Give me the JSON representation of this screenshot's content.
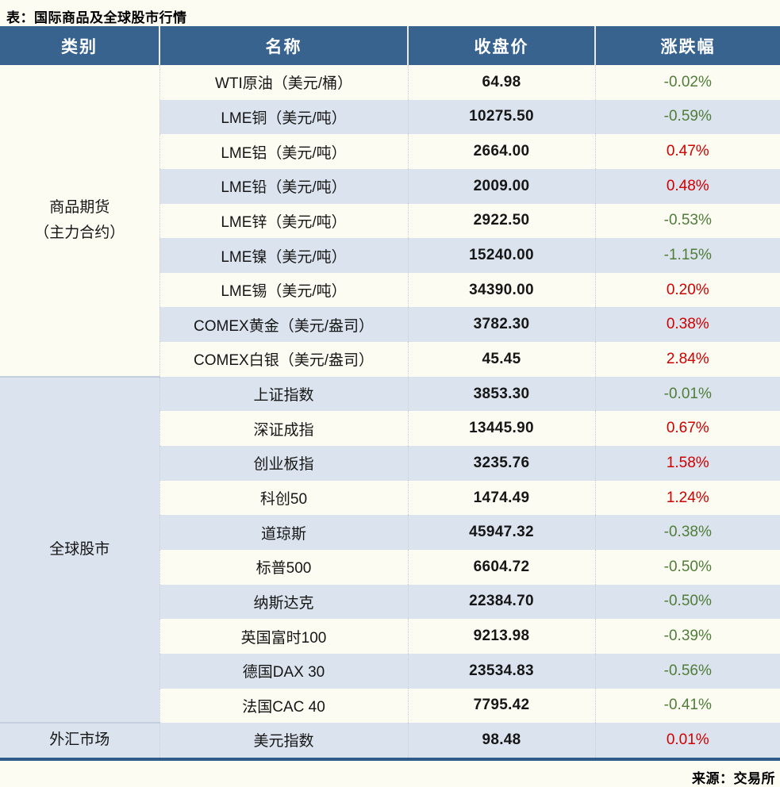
{
  "colors": {
    "page_bg": "#fdfcf3",
    "header_bg": "#38638f",
    "header_text": "#ffffff",
    "stripe_bg": "#dbe3ee",
    "bottom_border": "#2e5b8a",
    "positive_change": "#d00000",
    "negative_change": "#4f7d38"
  },
  "chart_data": {
    "type": "table",
    "title": "表：国际商品及全球股市行情",
    "source": "来源：交易所",
    "columns": [
      "类别",
      "名称",
      "收盘价",
      "涨跌幅"
    ],
    "groups": [
      {
        "category": "商品期货\n（主力合约）",
        "rows": [
          {
            "name": "WTI原油（美元/桶）",
            "close": "64.98",
            "change": "-0.02%"
          },
          {
            "name": "LME铜（美元/吨）",
            "close": "10275.50",
            "change": "-0.59%"
          },
          {
            "name": "LME铝（美元/吨）",
            "close": "2664.00",
            "change": "0.47%"
          },
          {
            "name": "LME铅（美元/吨）",
            "close": "2009.00",
            "change": "0.48%"
          },
          {
            "name": "LME锌（美元/吨）",
            "close": "2922.50",
            "change": "-0.53%"
          },
          {
            "name": "LME镍（美元/吨）",
            "close": "15240.00",
            "change": "-1.15%"
          },
          {
            "name": "LME锡（美元/吨）",
            "close": "34390.00",
            "change": "0.20%"
          },
          {
            "name": "COMEX黄金（美元/盎司）",
            "close": "3782.30",
            "change": "0.38%"
          },
          {
            "name": "COMEX白银（美元/盎司）",
            "close": "45.45",
            "change": "2.84%"
          }
        ]
      },
      {
        "category": "全球股市",
        "rows": [
          {
            "name": "上证指数",
            "close": "3853.30",
            "change": "-0.01%"
          },
          {
            "name": "深证成指",
            "close": "13445.90",
            "change": "0.67%"
          },
          {
            "name": "创业板指",
            "close": "3235.76",
            "change": "1.58%"
          },
          {
            "name": "科创50",
            "close": "1474.49",
            "change": "1.24%"
          },
          {
            "name": "道琼斯",
            "close": "45947.32",
            "change": "-0.38%"
          },
          {
            "name": "标普500",
            "close": "6604.72",
            "change": "-0.50%"
          },
          {
            "name": "纳斯达克",
            "close": "22384.70",
            "change": "-0.50%"
          },
          {
            "name": "英国富时100",
            "close": "9213.98",
            "change": "-0.39%"
          },
          {
            "name": "德国DAX 30",
            "close": "23534.83",
            "change": "-0.56%"
          },
          {
            "name": "法国CAC 40",
            "close": "7795.42",
            "change": "-0.41%"
          }
        ]
      },
      {
        "category": "外汇市场",
        "rows": [
          {
            "name": "美元指数",
            "close": "98.48",
            "change": "0.01%"
          }
        ]
      }
    ]
  }
}
